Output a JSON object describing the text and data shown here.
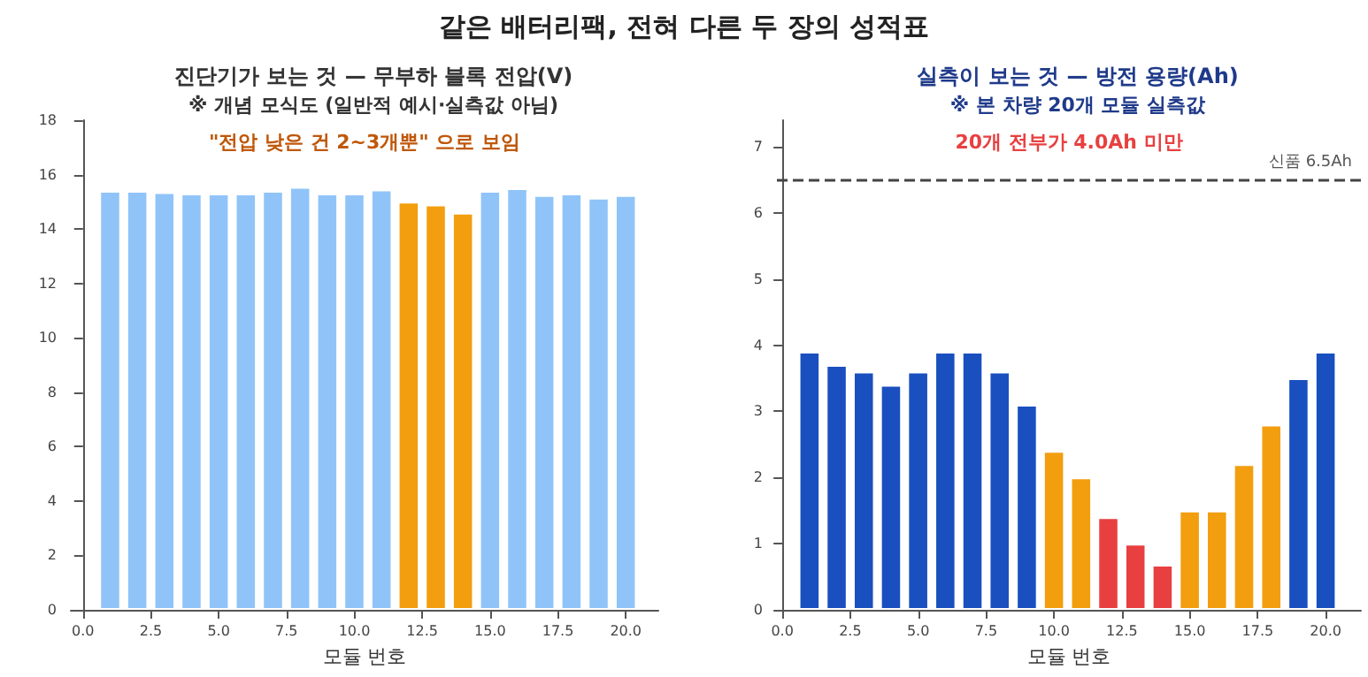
{
  "chart_data": [
    {
      "type": "bar",
      "title": "진단기가 보는 것 — 무부하 블록 전압(V)",
      "subtitle": "※ 개념 모식도 (일반적 예시·실측값 아님)",
      "xlabel": "모듈 번호",
      "annotations": [
        "같은 배터리팩, 전혀 다른 두 장의 성적표",
        "\"전압 낮은 건 2~3개뿐\" 으로 보임"
      ],
      "x": [
        1,
        2,
        3,
        4,
        5,
        6,
        7,
        8,
        9,
        10,
        11,
        12,
        13,
        14,
        15,
        16,
        17,
        18,
        19,
        20
      ],
      "values": [
        15.4,
        15.4,
        15.35,
        15.3,
        15.3,
        15.3,
        15.4,
        15.55,
        15.3,
        15.3,
        15.45,
        15.0,
        14.9,
        14.6,
        15.4,
        15.5,
        15.25,
        15.3,
        15.15,
        15.25
      ],
      "colors": [
        "#90c4f9",
        "#90c4f9",
        "#90c4f9",
        "#90c4f9",
        "#90c4f9",
        "#90c4f9",
        "#90c4f9",
        "#90c4f9",
        "#90c4f9",
        "#90c4f9",
        "#90c4f9",
        "#f29e0e",
        "#f29e0e",
        "#f29e0e",
        "#90c4f9",
        "#90c4f9",
        "#90c4f9",
        "#90c4f9",
        "#90c4f9",
        "#90c4f9"
      ],
      "xlim": [
        -0.45,
        21.2
      ],
      "xticks": [
        {
          "value": 0,
          "label": "0.0"
        },
        {
          "value": 2.5,
          "label": "2.5"
        },
        {
          "value": 5,
          "label": "5.0"
        },
        {
          "value": 7.5,
          "label": "7.5"
        },
        {
          "value": 10,
          "label": "10.0"
        },
        {
          "value": 12.5,
          "label": "12.5"
        },
        {
          "value": 15,
          "label": "15.0"
        },
        {
          "value": 17.5,
          "label": "17.5"
        },
        {
          "value": 20,
          "label": "20.0"
        }
      ],
      "ylim": [
        0,
        18
      ],
      "yticks": [
        0,
        2,
        4,
        6,
        8,
        10,
        12,
        14,
        16,
        18
      ]
    },
    {
      "type": "bar",
      "title": "실측이 보는 것 — 방전 용량(Ah)",
      "subtitle": "※ 본 차량 20개 모듈 실측값",
      "xlabel": "모듈 번호",
      "annotations": [
        "20개 전부가 4.0Ah 미만"
      ],
      "x": [
        1,
        2,
        3,
        4,
        5,
        6,
        7,
        8,
        9,
        10,
        11,
        12,
        13,
        14,
        15,
        16,
        17,
        18,
        19,
        20
      ],
      "values": [
        3.9,
        3.7,
        3.6,
        3.4,
        3.6,
        3.9,
        3.9,
        3.6,
        3.1,
        2.4,
        2.0,
        1.4,
        1.0,
        0.68,
        1.5,
        1.5,
        2.2,
        2.8,
        3.5,
        3.9
      ],
      "colors": [
        "#1a4fbf",
        "#1a4fbf",
        "#1a4fbf",
        "#1a4fbf",
        "#1a4fbf",
        "#1a4fbf",
        "#1a4fbf",
        "#1a4fbf",
        "#1a4fbf",
        "#f29e0e",
        "#f29e0e",
        "#e84040",
        "#e84040",
        "#e84040",
        "#f29e0e",
        "#f29e0e",
        "#f29e0e",
        "#f29e0e",
        "#1a4fbf",
        "#1a4fbf"
      ],
      "xlim": [
        -0.2,
        21.3
      ],
      "xticks": [
        {
          "value": 0,
          "label": "0.0"
        },
        {
          "value": 2.5,
          "label": "2.5"
        },
        {
          "value": 5,
          "label": "5.0"
        },
        {
          "value": 7.5,
          "label": "7.5"
        },
        {
          "value": 10,
          "label": "10.0"
        },
        {
          "value": 12.5,
          "label": "12.5"
        },
        {
          "value": 15,
          "label": "15.0"
        },
        {
          "value": 17.5,
          "label": "17.5"
        },
        {
          "value": 20,
          "label": "20.0"
        }
      ],
      "ylim": [
        0,
        7.4
      ],
      "yticks": [
        0,
        1,
        2,
        3,
        4,
        5,
        6,
        7
      ],
      "ref_lines": [
        {
          "axis": "y",
          "value": 6.5,
          "label": "신품 6.5Ah",
          "color": "#444444",
          "line_style": "dashed"
        }
      ]
    }
  ]
}
